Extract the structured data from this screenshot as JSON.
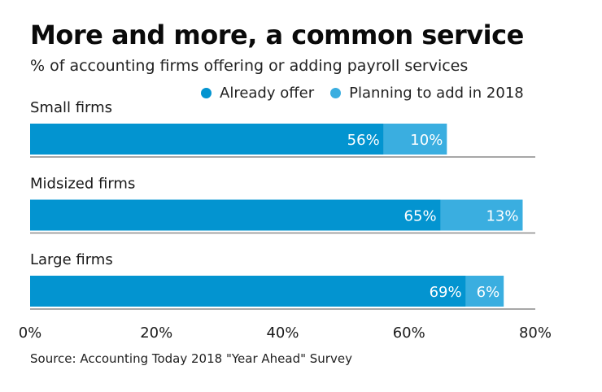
{
  "header": {
    "title": "More and more, a common service",
    "subtitle": "% of accounting firms offering or adding payroll services"
  },
  "legend": [
    {
      "label": "Already offer",
      "color": "#0394d0"
    },
    {
      "label": "Planning to add in 2018",
      "color": "#3aaee0"
    }
  ],
  "source": "Source: Accounting Today 2018 \"Year Ahead\" Survey",
  "chart_data": {
    "type": "bar",
    "orientation": "horizontal",
    "stacked": true,
    "title": "More and more, a common service",
    "subtitle": "% of accounting firms offering or adding payroll services",
    "categories": [
      "Small firms",
      "Midsized firms",
      "Large firms"
    ],
    "series": [
      {
        "name": "Already offer",
        "values": [
          56,
          65,
          69
        ],
        "labels": [
          "56%",
          "65%",
          "69%"
        ],
        "color": "#0394d0"
      },
      {
        "name": "Planning to add in 2018",
        "values": [
          10,
          13,
          6
        ],
        "labels": [
          "10%",
          "13%",
          "6%"
        ],
        "color": "#3aaee0"
      }
    ],
    "xlim": [
      0,
      80
    ],
    "xticks": [
      0,
      20,
      40,
      60,
      80
    ],
    "xtick_labels": [
      "0%",
      "20%",
      "40%",
      "60%",
      "80%"
    ],
    "xlabel": "",
    "ylabel": "",
    "grid": false,
    "legend_position": "top-right"
  }
}
